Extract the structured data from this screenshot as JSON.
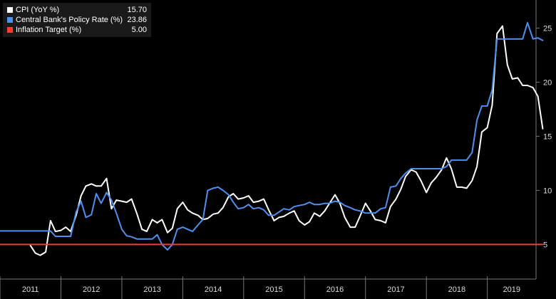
{
  "chart_data": {
    "type": "line",
    "title": "",
    "xlabel": "",
    "ylabel": "",
    "x_axis_labels": [
      "2011",
      "2012",
      "2013",
      "2014",
      "2015",
      "2016",
      "2017",
      "2018",
      "2019"
    ],
    "y_ticks": [
      5,
      10,
      15,
      20,
      25
    ],
    "ylim": [
      1.8,
      27.6
    ],
    "xlim": [
      2010.5,
      2019.3
    ],
    "y_axis_side": "right",
    "grid": false,
    "legend": [
      {
        "name": "CPI (YoY %)",
        "value": "15.70",
        "color": "#ffffff"
      },
      {
        "name": "Central Bank's Policy Rate (%)",
        "value": "23.86",
        "color": "#4f8ff0"
      },
      {
        "name": "Inflation Target (%)",
        "value": "5.00",
        "color": "#ff3b30"
      }
    ],
    "legend_position": "top-left",
    "series": [
      {
        "name": "CPI (YoY %)",
        "color": "#ffffff",
        "points": [
          [
            2011.0,
            4.9
          ],
          [
            2011.08,
            4.2
          ],
          [
            2011.16,
            4.0
          ],
          [
            2011.25,
            4.3
          ],
          [
            2011.33,
            7.2
          ],
          [
            2011.41,
            6.2
          ],
          [
            2011.5,
            6.3
          ],
          [
            2011.58,
            6.6
          ],
          [
            2011.66,
            6.2
          ],
          [
            2011.75,
            7.7
          ],
          [
            2011.83,
            9.5
          ],
          [
            2011.91,
            10.4
          ],
          [
            2012.0,
            10.6
          ],
          [
            2012.08,
            10.4
          ],
          [
            2012.16,
            10.4
          ],
          [
            2012.25,
            11.1
          ],
          [
            2012.33,
            8.3
          ],
          [
            2012.41,
            9.1
          ],
          [
            2012.5,
            9.0
          ],
          [
            2012.58,
            8.9
          ],
          [
            2012.66,
            9.2
          ],
          [
            2012.75,
            7.8
          ],
          [
            2012.83,
            6.4
          ],
          [
            2012.91,
            6.2
          ],
          [
            2013.0,
            7.3
          ],
          [
            2013.08,
            7.0
          ],
          [
            2013.16,
            7.3
          ],
          [
            2013.25,
            6.1
          ],
          [
            2013.33,
            6.5
          ],
          [
            2013.41,
            8.3
          ],
          [
            2013.5,
            8.9
          ],
          [
            2013.58,
            8.2
          ],
          [
            2013.66,
            7.9
          ],
          [
            2013.75,
            7.7
          ],
          [
            2013.83,
            7.3
          ],
          [
            2013.91,
            7.4
          ],
          [
            2014.0,
            7.8
          ],
          [
            2014.08,
            7.9
          ],
          [
            2014.16,
            8.4
          ],
          [
            2014.25,
            9.4
          ],
          [
            2014.33,
            9.7
          ],
          [
            2014.41,
            9.2
          ],
          [
            2014.5,
            9.3
          ],
          [
            2014.58,
            9.5
          ],
          [
            2014.66,
            8.9
          ],
          [
            2014.75,
            9.0
          ],
          [
            2014.83,
            9.2
          ],
          [
            2014.91,
            8.2
          ],
          [
            2015.0,
            7.2
          ],
          [
            2015.08,
            7.5
          ],
          [
            2015.16,
            7.6
          ],
          [
            2015.25,
            7.9
          ],
          [
            2015.33,
            8.1
          ],
          [
            2015.41,
            7.2
          ],
          [
            2015.5,
            6.8
          ],
          [
            2015.58,
            7.1
          ],
          [
            2015.66,
            7.9
          ],
          [
            2015.75,
            7.6
          ],
          [
            2015.83,
            8.1
          ],
          [
            2015.91,
            8.8
          ],
          [
            2016.0,
            9.6
          ],
          [
            2016.08,
            8.8
          ],
          [
            2016.16,
            7.5
          ],
          [
            2016.25,
            6.6
          ],
          [
            2016.33,
            6.6
          ],
          [
            2016.41,
            7.6
          ],
          [
            2016.5,
            8.8
          ],
          [
            2016.58,
            8.1
          ],
          [
            2016.66,
            7.3
          ],
          [
            2016.75,
            7.2
          ],
          [
            2016.83,
            7.0
          ],
          [
            2016.91,
            8.5
          ],
          [
            2017.0,
            9.2
          ],
          [
            2017.08,
            10.1
          ],
          [
            2017.16,
            11.3
          ],
          [
            2017.25,
            11.9
          ],
          [
            2017.33,
            11.7
          ],
          [
            2017.41,
            10.9
          ],
          [
            2017.5,
            9.8
          ],
          [
            2017.58,
            10.7
          ],
          [
            2017.66,
            11.2
          ],
          [
            2017.75,
            11.9
          ],
          [
            2017.83,
            13.0
          ],
          [
            2017.91,
            12.0
          ],
          [
            2018.0,
            10.3
          ],
          [
            2018.08,
            10.3
          ],
          [
            2018.16,
            10.2
          ],
          [
            2018.25,
            10.9
          ],
          [
            2018.33,
            12.2
          ],
          [
            2018.41,
            15.4
          ],
          [
            2018.5,
            15.8
          ],
          [
            2018.58,
            17.9
          ],
          [
            2018.66,
            24.5
          ],
          [
            2018.75,
            25.2
          ],
          [
            2018.83,
            21.6
          ],
          [
            2018.91,
            20.3
          ],
          [
            2019.0,
            20.4
          ],
          [
            2019.08,
            19.7
          ],
          [
            2019.16,
            19.7
          ],
          [
            2019.25,
            19.5
          ],
          [
            2019.33,
            18.7
          ],
          [
            2019.41,
            15.7
          ]
        ]
      },
      {
        "name": "Central Bank's Policy Rate (%)",
        "color": "#4f8ff0",
        "points": [
          [
            2010.5,
            6.25
          ],
          [
            2011.33,
            6.25
          ],
          [
            2011.41,
            5.75
          ],
          [
            2011.66,
            5.75
          ],
          [
            2011.75,
            8.0
          ],
          [
            2011.83,
            9.0
          ],
          [
            2011.91,
            7.5
          ],
          [
            2012.0,
            7.75
          ],
          [
            2012.08,
            9.7
          ],
          [
            2012.16,
            8.8
          ],
          [
            2012.25,
            9.8
          ],
          [
            2012.33,
            9.1
          ],
          [
            2012.41,
            7.9
          ],
          [
            2012.5,
            6.4
          ],
          [
            2012.58,
            5.8
          ],
          [
            2012.66,
            5.7
          ],
          [
            2012.75,
            5.5
          ],
          [
            2012.83,
            5.5
          ],
          [
            2012.91,
            5.5
          ],
          [
            2013.0,
            5.5
          ],
          [
            2013.08,
            5.9
          ],
          [
            2013.16,
            5.0
          ],
          [
            2013.25,
            4.5
          ],
          [
            2013.33,
            5.0
          ],
          [
            2013.41,
            6.4
          ],
          [
            2013.5,
            6.6
          ],
          [
            2013.58,
            6.4
          ],
          [
            2013.66,
            6.2
          ],
          [
            2013.75,
            6.8
          ],
          [
            2013.83,
            7.3
          ],
          [
            2013.91,
            10.0
          ],
          [
            2014.0,
            10.2
          ],
          [
            2014.08,
            10.3
          ],
          [
            2014.16,
            10.0
          ],
          [
            2014.25,
            9.6
          ],
          [
            2014.33,
            8.9
          ],
          [
            2014.41,
            8.3
          ],
          [
            2014.5,
            8.4
          ],
          [
            2014.58,
            8.7
          ],
          [
            2014.66,
            8.3
          ],
          [
            2014.75,
            8.4
          ],
          [
            2014.83,
            8.2
          ],
          [
            2014.91,
            7.7
          ],
          [
            2015.0,
            7.7
          ],
          [
            2015.08,
            8.0
          ],
          [
            2015.16,
            8.3
          ],
          [
            2015.25,
            8.2
          ],
          [
            2015.33,
            8.5
          ],
          [
            2015.41,
            8.6
          ],
          [
            2015.5,
            8.7
          ],
          [
            2015.58,
            8.9
          ],
          [
            2015.66,
            8.7
          ],
          [
            2015.75,
            8.7
          ],
          [
            2015.83,
            8.8
          ],
          [
            2015.91,
            8.8
          ],
          [
            2016.0,
            9.0
          ],
          [
            2016.08,
            8.9
          ],
          [
            2016.16,
            8.6
          ],
          [
            2016.25,
            8.4
          ],
          [
            2016.33,
            8.2
          ],
          [
            2016.41,
            8.1
          ],
          [
            2016.5,
            7.9
          ],
          [
            2016.58,
            7.9
          ],
          [
            2016.66,
            7.9
          ],
          [
            2016.75,
            8.3
          ],
          [
            2016.83,
            8.4
          ],
          [
            2016.91,
            10.3
          ],
          [
            2017.0,
            10.4
          ],
          [
            2017.08,
            11.1
          ],
          [
            2017.16,
            11.6
          ],
          [
            2017.25,
            12.0
          ],
          [
            2017.33,
            12.0
          ],
          [
            2017.41,
            12.0
          ],
          [
            2017.5,
            12.0
          ],
          [
            2017.58,
            12.0
          ],
          [
            2017.66,
            12.0
          ],
          [
            2017.75,
            12.0
          ],
          [
            2017.83,
            12.2
          ],
          [
            2017.91,
            12.8
          ],
          [
            2018.0,
            12.8
          ],
          [
            2018.08,
            12.8
          ],
          [
            2018.16,
            12.8
          ],
          [
            2018.25,
            13.5
          ],
          [
            2018.33,
            16.5
          ],
          [
            2018.41,
            17.8
          ],
          [
            2018.5,
            17.8
          ],
          [
            2018.58,
            19.3
          ],
          [
            2018.66,
            24.0
          ],
          [
            2018.75,
            24.0
          ],
          [
            2018.83,
            24.0
          ],
          [
            2018.91,
            24.0
          ],
          [
            2019.0,
            24.0
          ],
          [
            2019.08,
            24.0
          ],
          [
            2019.16,
            25.5
          ],
          [
            2019.25,
            24.0
          ],
          [
            2019.33,
            24.1
          ],
          [
            2019.41,
            23.86
          ]
        ]
      },
      {
        "name": "Inflation Target (%)",
        "color": "#ff3b30",
        "points": [
          [
            2010.5,
            5.0
          ],
          [
            2019.41,
            5.0
          ]
        ]
      }
    ]
  }
}
